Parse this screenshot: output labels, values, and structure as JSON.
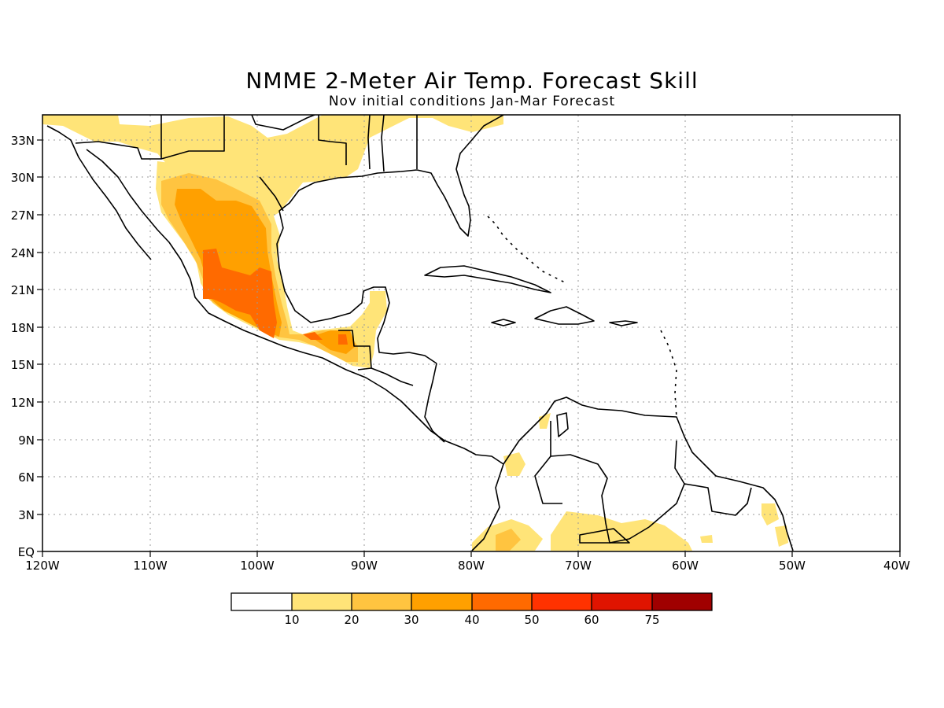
{
  "title": "NMME 2-Meter Air Temp. Forecast Skill",
  "subtitle": "Nov initial conditions  Jan-Mar Forecast",
  "map": {
    "lon_range": [
      -120,
      -40
    ],
    "lat_range": [
      0,
      35
    ],
    "lat_labels": [
      "EQ",
      "3N",
      "6N",
      "9N",
      "12N",
      "15N",
      "18N",
      "21N",
      "24N",
      "27N",
      "30N",
      "33N"
    ],
    "lon_labels": [
      "120W",
      "110W",
      "100W",
      "90W",
      "80W",
      "70W",
      "60W",
      "50W",
      "40W"
    ]
  },
  "colorbar": {
    "labels": [
      "10",
      "20",
      "30",
      "40",
      "50",
      "60",
      "75"
    ],
    "colors": [
      "#ffffff",
      "#ffe478",
      "#ffc440",
      "#ffa000",
      "#ff6a00",
      "#ff3200",
      "#e01400",
      "#a00000"
    ]
  }
}
